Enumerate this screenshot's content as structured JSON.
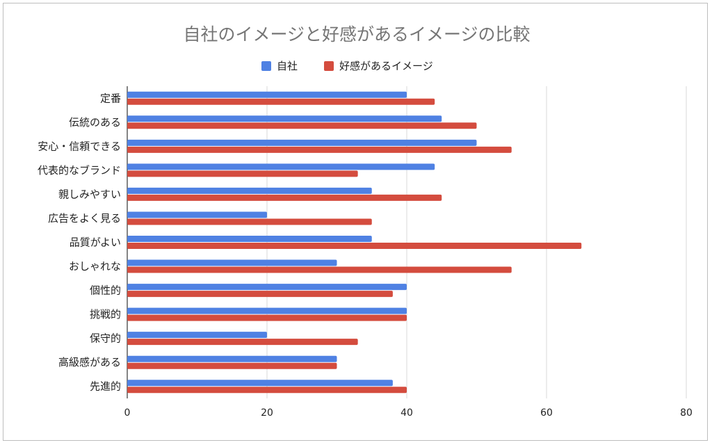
{
  "chart_data": {
    "type": "bar",
    "orientation": "horizontal",
    "title": "自社のイメージと好感があるイメージの比較",
    "legend_position": "top",
    "categories": [
      "定番",
      "伝統のある",
      "安心・信頼できる",
      "代表的なブランド",
      "親しみやすい",
      "広告をよく見る",
      "品質がよい",
      "おしゃれな",
      "個性的",
      "挑戦的",
      "保守的",
      "高級感がある",
      "先進的"
    ],
    "series": [
      {
        "name": "自社",
        "color": "#4f81e3",
        "values": [
          40,
          45,
          50,
          44,
          35,
          20,
          35,
          30,
          40,
          40,
          20,
          30,
          38
        ]
      },
      {
        "name": "好感があるイメージ",
        "color": "#d44c3e",
        "values": [
          44,
          50,
          55,
          33,
          45,
          35,
          65,
          55,
          38,
          40,
          33,
          30,
          40
        ]
      }
    ],
    "xlim": [
      0,
      80
    ],
    "x_ticks": [
      0,
      20,
      40,
      60,
      80
    ],
    "grid": true
  }
}
